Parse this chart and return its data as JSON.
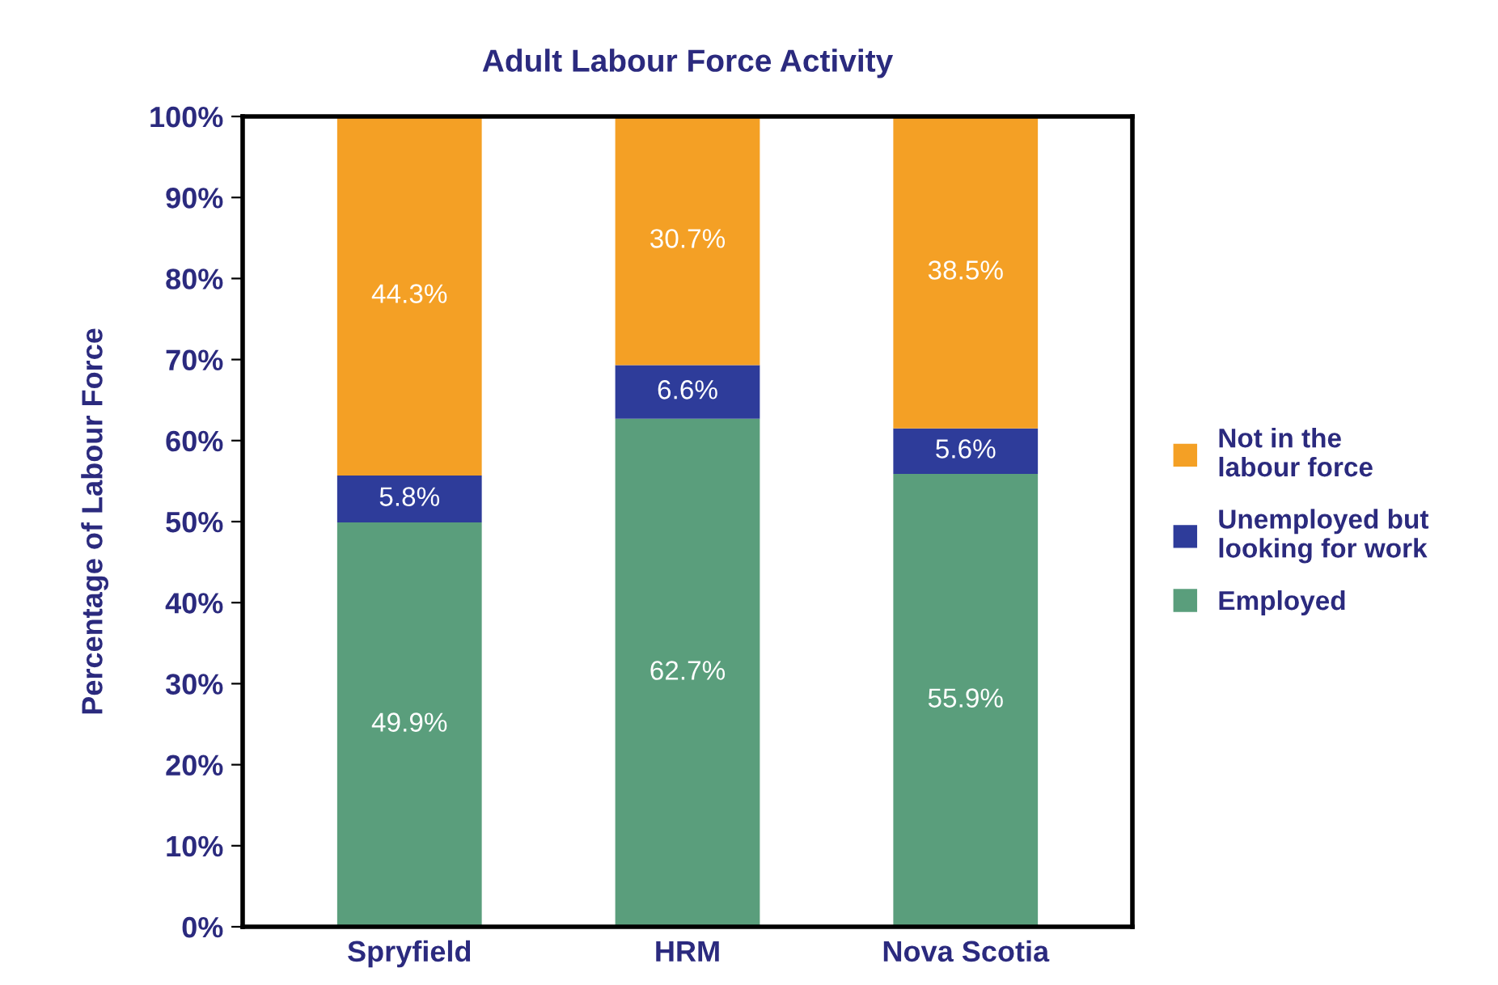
{
  "chart_data": {
    "type": "bar",
    "title": "Adult Labour Force Activity",
    "ylabel": "Percentage of Labour Force",
    "categories": [
      "Spryfield",
      "HRM",
      "Nova Scotia"
    ],
    "stacked": true,
    "series": [
      {
        "name": "Employed",
        "color": "#5a9e7c",
        "values": [
          49.9,
          62.7,
          55.9
        ],
        "value_labels": [
          "49.9%",
          "62.7%",
          "55.9%"
        ]
      },
      {
        "name": "Unemployed but looking for work",
        "color": "#2e3c9a",
        "values": [
          5.8,
          6.6,
          5.6
        ],
        "value_labels": [
          "5.8%",
          "6.6%",
          "5.6%"
        ]
      },
      {
        "name": "Not in the labour force",
        "color": "#f4a025",
        "values": [
          44.3,
          30.7,
          38.5
        ],
        "value_labels": [
          "44.3%",
          "30.7%",
          "38.5%"
        ]
      }
    ],
    "ylim": [
      0,
      100
    ],
    "yticks": [
      {
        "value": 0,
        "label": "0%"
      },
      {
        "value": 10,
        "label": "10%"
      },
      {
        "value": 20,
        "label": "20%"
      },
      {
        "value": 30,
        "label": "30%"
      },
      {
        "value": 40,
        "label": "40%"
      },
      {
        "value": 50,
        "label": "50%"
      },
      {
        "value": 60,
        "label": "60%"
      },
      {
        "value": 70,
        "label": "70%"
      },
      {
        "value": 80,
        "label": "80%"
      },
      {
        "value": 90,
        "label": "90%"
      },
      {
        "value": 100,
        "label": "100%"
      }
    ],
    "grid": false,
    "legend": "right"
  }
}
